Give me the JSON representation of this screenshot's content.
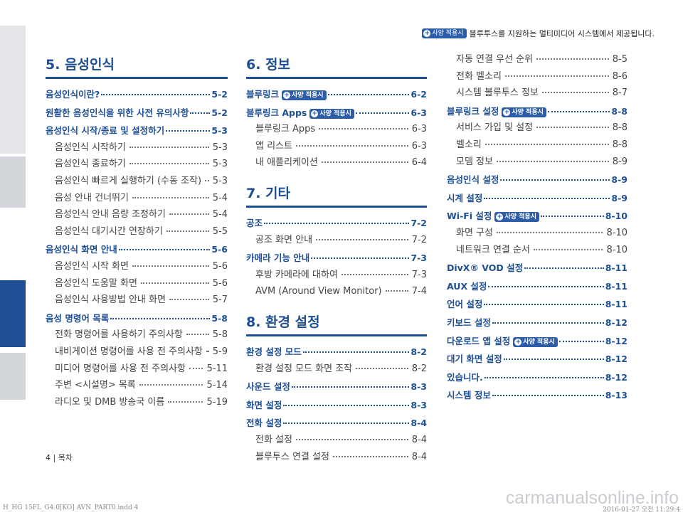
{
  "top_notice": {
    "badge": "사양 적용시",
    "text": "블루투스를 지원하는 멀티미디어 시스템에서 제공됩니다."
  },
  "columns": [
    {
      "title": "5. 음성인식",
      "entries": [
        {
          "type": "h",
          "label": "음성인식이란?",
          "page": "5-2"
        },
        {
          "type": "h",
          "label": "원활한 음성인식을 위한 사전 유의사항",
          "page": "5-2"
        },
        {
          "type": "h",
          "label": "음성인식 시작/종료 및 설정하기",
          "page": "5-3"
        },
        {
          "type": "s",
          "label": "음성인식 시작하기",
          "page": "5-3"
        },
        {
          "type": "s",
          "label": "음성인식 종료하기",
          "page": "5-3"
        },
        {
          "type": "s",
          "label": "음성인식 빠르게 실행하기 (수동 조작)",
          "page": "5-3"
        },
        {
          "type": "s",
          "label": "음성 안내 건너뛰기",
          "page": "5-4"
        },
        {
          "type": "s",
          "label": "음성인식 안내 음량 조정하기",
          "page": "5-4"
        },
        {
          "type": "s",
          "label": "음성인식 대기시간 연장하기",
          "page": "5-5"
        },
        {
          "type": "h",
          "label": "음성인식 화면 안내",
          "page": "5-6"
        },
        {
          "type": "s",
          "label": "음성인식 시작 화면",
          "page": "5-6"
        },
        {
          "type": "s",
          "label": "음성인식 도움말 화면",
          "page": "5-6"
        },
        {
          "type": "s",
          "label": "음성인식 사용방법 안내 화면",
          "page": "5-7"
        },
        {
          "type": "h",
          "label": "음성 명령어 목록",
          "page": "5-8"
        },
        {
          "type": "s",
          "label": "전화 명령어를 사용하기 주의사항",
          "page": "5-8"
        },
        {
          "type": "s",
          "label": "내비게이션 명령어를 사용 전 주의사항",
          "page": "5-9"
        },
        {
          "type": "s",
          "label": "미디어 명령어를 사용 전 주의사항",
          "page": "5-11"
        },
        {
          "type": "s",
          "label": "주변 <시설명> 목록",
          "page": "5-14"
        },
        {
          "type": "s",
          "label": "라디오 및 DMB 방송국 이름",
          "page": "5-19"
        }
      ]
    },
    {
      "sections": [
        {
          "title": "6. 정보",
          "entries": [
            {
              "type": "h",
              "label": "블루링크",
              "badge": "사양 적용시",
              "page": "6-2"
            },
            {
              "type": "h",
              "label": "블루링크 Apps",
              "badge": "사양 적용시",
              "page": "6-3"
            },
            {
              "type": "s",
              "label": "블루링크 Apps",
              "page": "6-3"
            },
            {
              "type": "s",
              "label": "앱 리스트",
              "page": "6-3"
            },
            {
              "type": "s",
              "label": "내 애플리케이션",
              "page": "6-4"
            }
          ]
        },
        {
          "title": "7. 기타",
          "entries": [
            {
              "type": "h",
              "label": "공조",
              "page": "7-2"
            },
            {
              "type": "s",
              "label": "공조 화면 안내",
              "page": "7-2"
            },
            {
              "type": "h",
              "label": "카메라 기능 안내",
              "page": "7-3"
            },
            {
              "type": "s",
              "label": "후방 카메라에 대하여",
              "page": "7-3"
            },
            {
              "type": "s",
              "label": "AVM (Around View Monitor)",
              "page": "7-4"
            }
          ]
        },
        {
          "title": "8. 환경 설정",
          "entries": [
            {
              "type": "h",
              "label": "환경 설정 모드",
              "page": "8-2"
            },
            {
              "type": "s",
              "label": "환경 설정 모드 화면 조작",
              "page": "8-2"
            },
            {
              "type": "h",
              "label": "사운드 설정",
              "page": "8-3"
            },
            {
              "type": "h",
              "label": "화면 설정",
              "page": "8-3"
            },
            {
              "type": "h",
              "label": "전화 설정",
              "page": "8-4"
            },
            {
              "type": "s",
              "label": "전화 설정",
              "page": "8-4"
            },
            {
              "type": "s",
              "label": "블루투스 연결 설정",
              "page": "8-4"
            }
          ]
        }
      ]
    },
    {
      "entries": [
        {
          "type": "s",
          "label": "자동 연결 우선 순위",
          "page": "8-5"
        },
        {
          "type": "s",
          "label": "전화 벨소리",
          "page": "8-6"
        },
        {
          "type": "s",
          "label": "시스템 블루투스 정보",
          "page": "8-7"
        },
        {
          "type": "h",
          "label": "블루링크 설정",
          "badge": "사양 적용시",
          "page": "8-8"
        },
        {
          "type": "s",
          "label": "서비스 가입 및 설정",
          "page": "8-8"
        },
        {
          "type": "s",
          "label": "벨소리",
          "page": "8-8"
        },
        {
          "type": "s",
          "label": "모뎀 정보",
          "page": "8-9"
        },
        {
          "type": "h",
          "label": "음성인식 설정",
          "page": "8-9"
        },
        {
          "type": "h",
          "label": "시계 설정",
          "page": "8-9"
        },
        {
          "type": "h",
          "label": "Wi-Fi 설정",
          "badge": "사양 적용시",
          "page": "8-10"
        },
        {
          "type": "s",
          "label": "화면 구성",
          "page": "8-10"
        },
        {
          "type": "s",
          "label": "네트워크 연결 순서",
          "page": "8-10"
        },
        {
          "type": "h",
          "label": "DivX® VOD 설정",
          "page": "8-11"
        },
        {
          "type": "h",
          "label": "AUX 설정",
          "page": "8-11"
        },
        {
          "type": "h",
          "label": "언어 설정",
          "page": "8-11"
        },
        {
          "type": "h",
          "label": "키보드 설정",
          "page": "8-12"
        },
        {
          "type": "h",
          "label": "다운로드 앱 설정",
          "badge": "사양 적용시",
          "page": "8-12"
        },
        {
          "type": "h",
          "label": "대기 화면 설정",
          "page": "8-12"
        },
        {
          "type": "h",
          "label": "있습니다.",
          "page": "8-12"
        },
        {
          "type": "h",
          "label": "시스템 정보",
          "page": "8-13"
        }
      ]
    }
  ],
  "footer": {
    "page_label": "4 | 목차",
    "file": "H_HG 15FL_G4.0[KO] AVN_PART0.indd   4",
    "stamp": "2016-01-27   오전 11:29:4",
    "watermark": "carmanualsonline.info"
  }
}
